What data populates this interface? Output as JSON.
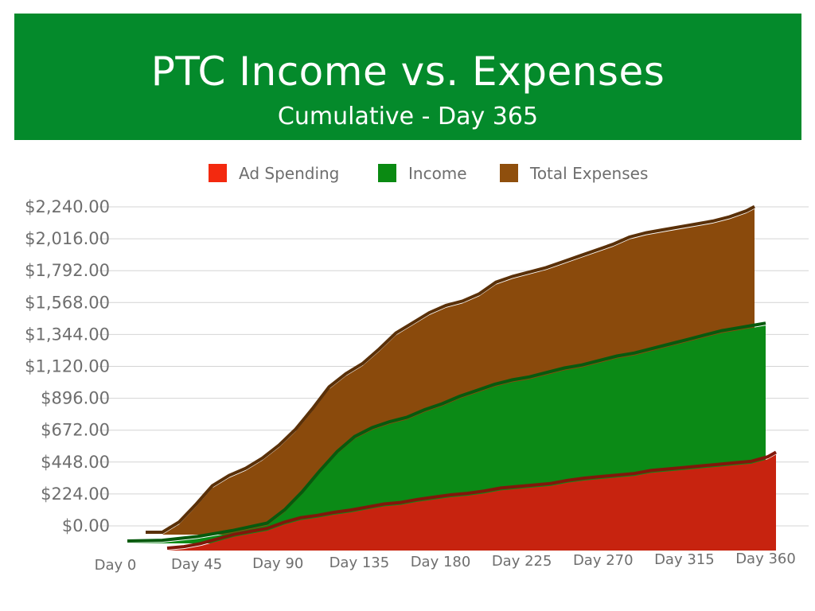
{
  "header": {
    "title": "PTC Income vs. Expenses",
    "subtitle": "Cumulative - Day 365"
  },
  "chart_data": {
    "type": "area",
    "title": "PTC Income vs. Expenses",
    "subtitle": "Cumulative - Day 365",
    "legend_position": "top",
    "grid": true,
    "ylim": [
      0,
      2240
    ],
    "xlim": [
      0,
      365
    ],
    "yticks": [
      "$0.00",
      "$224.00",
      "$448.00",
      "$672.00",
      "$896.00",
      "$1,120.00",
      "$1,344.00",
      "$1,568.00",
      "$1,792.00",
      "$2,016.00",
      "$2,240.00"
    ],
    "xticks": [
      "Day 0",
      "Day 45",
      "Day 90",
      "Day 135",
      "Day 180",
      "Day 225",
      "Day 270",
      "Day 315",
      "Day 360"
    ],
    "series": [
      {
        "name": "Total Expenses",
        "color": "#8a4a0c",
        "points": [
          [
            0,
            0
          ],
          [
            10,
            0
          ],
          [
            20,
            70
          ],
          [
            30,
            190
          ],
          [
            40,
            320
          ],
          [
            50,
            390
          ],
          [
            60,
            440
          ],
          [
            70,
            510
          ],
          [
            80,
            600
          ],
          [
            90,
            710
          ],
          [
            100,
            850
          ],
          [
            110,
            1000
          ],
          [
            120,
            1090
          ],
          [
            130,
            1160
          ],
          [
            140,
            1260
          ],
          [
            150,
            1370
          ],
          [
            160,
            1440
          ],
          [
            170,
            1510
          ],
          [
            180,
            1560
          ],
          [
            190,
            1590
          ],
          [
            200,
            1640
          ],
          [
            210,
            1720
          ],
          [
            220,
            1760
          ],
          [
            230,
            1790
          ],
          [
            240,
            1820
          ],
          [
            250,
            1860
          ],
          [
            260,
            1900
          ],
          [
            270,
            1940
          ],
          [
            280,
            1980
          ],
          [
            290,
            2030
          ],
          [
            300,
            2060
          ],
          [
            310,
            2080
          ],
          [
            320,
            2100
          ],
          [
            330,
            2120
          ],
          [
            340,
            2140
          ],
          [
            350,
            2170
          ],
          [
            360,
            2210
          ],
          [
            365,
            2240
          ]
        ]
      },
      {
        "name": "Income",
        "color": "#0b8a16",
        "points": [
          [
            0,
            0
          ],
          [
            20,
            5
          ],
          [
            40,
            30
          ],
          [
            60,
            70
          ],
          [
            80,
            120
          ],
          [
            90,
            210
          ],
          [
            100,
            330
          ],
          [
            110,
            470
          ],
          [
            120,
            600
          ],
          [
            130,
            700
          ],
          [
            140,
            760
          ],
          [
            150,
            800
          ],
          [
            160,
            830
          ],
          [
            170,
            880
          ],
          [
            180,
            920
          ],
          [
            190,
            970
          ],
          [
            200,
            1010
          ],
          [
            210,
            1050
          ],
          [
            220,
            1080
          ],
          [
            230,
            1100
          ],
          [
            240,
            1130
          ],
          [
            250,
            1160
          ],
          [
            260,
            1180
          ],
          [
            270,
            1210
          ],
          [
            280,
            1240
          ],
          [
            290,
            1260
          ],
          [
            300,
            1290
          ],
          [
            310,
            1320
          ],
          [
            320,
            1350
          ],
          [
            330,
            1380
          ],
          [
            340,
            1410
          ],
          [
            350,
            1430
          ],
          [
            360,
            1450
          ],
          [
            365,
            1460
          ]
        ]
      },
      {
        "name": "Ad Spending",
        "color": "#c7230f",
        "points": [
          [
            0,
            0
          ],
          [
            10,
            10
          ],
          [
            20,
            30
          ],
          [
            30,
            60
          ],
          [
            40,
            90
          ],
          [
            50,
            110
          ],
          [
            60,
            130
          ],
          [
            70,
            170
          ],
          [
            80,
            200
          ],
          [
            90,
            215
          ],
          [
            100,
            235
          ],
          [
            110,
            250
          ],
          [
            120,
            270
          ],
          [
            130,
            290
          ],
          [
            140,
            300
          ],
          [
            150,
            320
          ],
          [
            160,
            335
          ],
          [
            170,
            350
          ],
          [
            180,
            360
          ],
          [
            190,
            375
          ],
          [
            200,
            395
          ],
          [
            210,
            405
          ],
          [
            220,
            415
          ],
          [
            230,
            425
          ],
          [
            240,
            445
          ],
          [
            250,
            460
          ],
          [
            260,
            470
          ],
          [
            270,
            480
          ],
          [
            280,
            490
          ],
          [
            290,
            510
          ],
          [
            300,
            520
          ],
          [
            310,
            530
          ],
          [
            320,
            540
          ],
          [
            330,
            550
          ],
          [
            340,
            560
          ],
          [
            350,
            570
          ],
          [
            360,
            600
          ],
          [
            365,
            630
          ]
        ]
      }
    ]
  }
}
